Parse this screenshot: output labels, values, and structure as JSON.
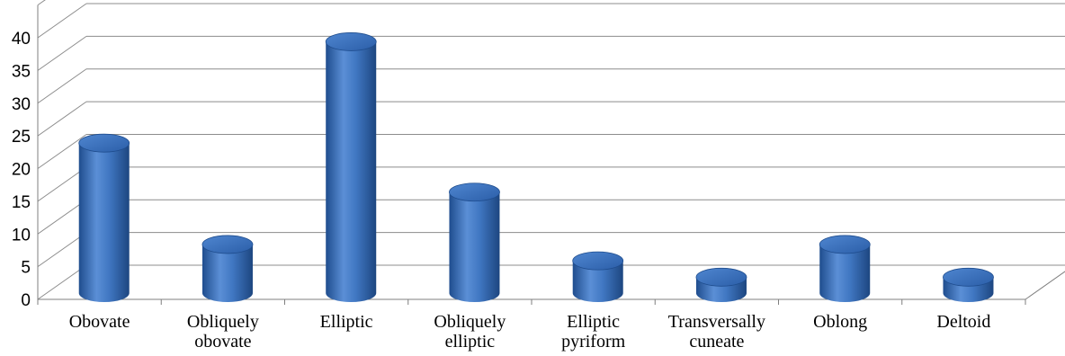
{
  "chart_data": {
    "type": "bar",
    "categories": [
      [
        "Obovate"
      ],
      [
        "Obliquely",
        "obovate"
      ],
      [
        "Elliptic"
      ],
      [
        "Obliquely",
        "elliptic"
      ],
      [
        "Elliptic",
        "pyriform"
      ],
      [
        "Transversally",
        "cuneate"
      ],
      [
        "Oblong"
      ],
      [
        "Deltoid"
      ]
    ],
    "values": [
      23,
      7.5,
      38.5,
      15.5,
      5,
      2.5,
      7.5,
      2.5
    ],
    "yticks": [
      "0",
      "5",
      "10",
      "15",
      "20",
      "25",
      "30",
      "35",
      "40"
    ],
    "ylim": [
      0,
      40
    ],
    "grid": true,
    "style": "3d-cylinder",
    "bar_color": "#3f76c0",
    "bar_top_color": "#2a5aa0"
  }
}
